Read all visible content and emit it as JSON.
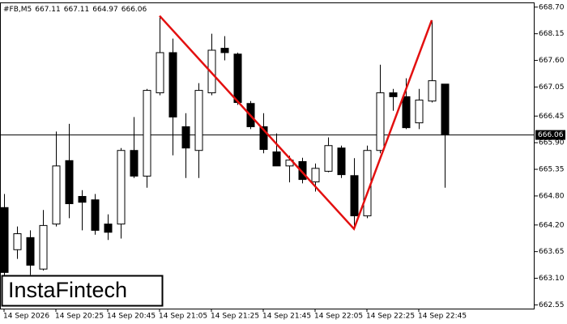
{
  "chart_data": {
    "type": "candlestick",
    "symbol": "#FB,M5",
    "logo": "InstaFintech",
    "categories": [
      "14 Sep 2026",
      null,
      null,
      null,
      "14 Sep 20:25",
      null,
      null,
      null,
      "14 Sep 20:45",
      null,
      null,
      null,
      "14 Sep 21:05",
      null,
      null,
      null,
      "14 Sep 21:25",
      null,
      null,
      null,
      "14 Sep 21:45",
      null,
      null,
      null,
      "14 Sep 22:05",
      null,
      null,
      null,
      "14 Sep 22:25",
      null,
      null,
      null,
      "14 Sep 22:45",
      null,
      null
    ],
    "open": [
      664.56,
      663.69,
      663.94,
      663.29,
      664.22,
      665.53,
      664.79,
      664.72,
      664.22,
      664.22,
      665.74,
      665.21,
      666.93,
      667.76,
      666.23,
      665.74,
      666.93,
      667.85,
      667.73,
      666.71,
      666.23,
      665.71,
      665.42,
      665.51,
      665.09,
      665.31,
      665.79,
      665.22,
      664.39,
      665.74,
      666.93,
      666.85,
      666.31,
      666.76,
      667.11
    ],
    "high": [
      664.84,
      664.17,
      664.09,
      664.51,
      666.13,
      666.29,
      664.92,
      664.84,
      664.42,
      665.79,
      666.43,
      667.01,
      668.52,
      668.05,
      666.51,
      667.13,
      668.15,
      668.1,
      667.76,
      666.76,
      666.51,
      666.09,
      665.63,
      665.59,
      665.47,
      666.01,
      665.84,
      665.58,
      665.84,
      667.51,
      667.01,
      667.23,
      667.01,
      668.43,
      667.11
    ],
    "low": [
      663.09,
      663.5,
      663.17,
      663.26,
      664.17,
      664.34,
      664.09,
      664.0,
      663.89,
      663.92,
      665.17,
      664.97,
      666.88,
      665.64,
      665.17,
      665.17,
      666.88,
      667.6,
      666.68,
      666.18,
      665.68,
      665.42,
      665.08,
      665.06,
      664.89,
      665.29,
      665.17,
      664.12,
      664.34,
      665.68,
      666.56,
      666.18,
      666.18,
      666.73,
      664.97
    ],
    "close": [
      663.22,
      664.02,
      663.37,
      664.19,
      665.42,
      664.64,
      664.67,
      664.09,
      664.05,
      665.74,
      665.21,
      666.98,
      667.76,
      666.43,
      665.79,
      666.98,
      667.81,
      667.76,
      666.73,
      666.23,
      665.76,
      665.42,
      665.54,
      665.14,
      665.37,
      665.84,
      665.24,
      664.39,
      665.74,
      666.93,
      666.85,
      666.21,
      666.78,
      667.18,
      666.06
    ],
    "up_color": "#ffffff",
    "down_color": "#000000",
    "pattern_color": "#e31010",
    "ylim": [
      662.49,
      668.78
    ],
    "yticks": [
      {
        "value": 668.7,
        "label": "668.70"
      },
      668.15,
      {
        "value": 667.6,
        "label": "667.60"
      },
      667.05,
      666.45,
      {
        "value": 665.9,
        "label": "665.90"
      },
      665.35,
      {
        "value": 664.8,
        "label": "664.80"
      },
      {
        "value": 664.2,
        "label": "664.20"
      },
      663.65,
      {
        "value": 663.1,
        "label": "663.10"
      },
      662.55
    ]
  }
}
